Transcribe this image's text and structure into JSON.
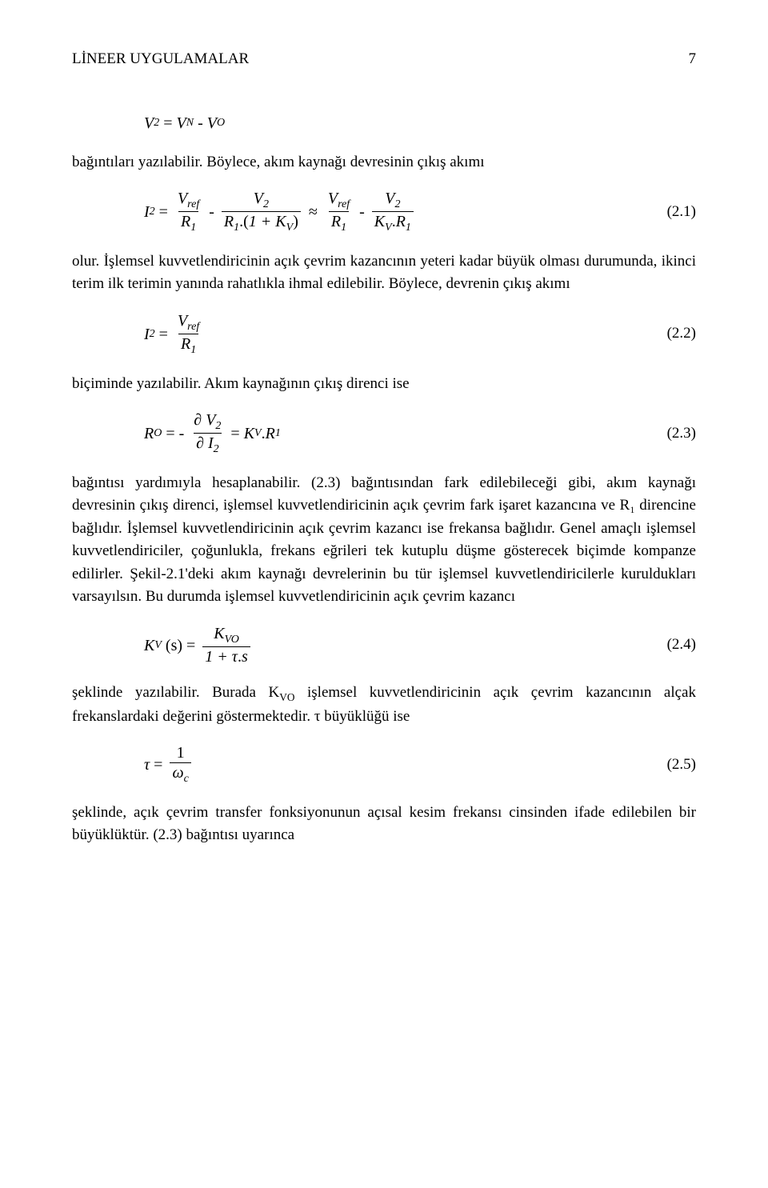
{
  "header": {
    "title": "LİNEER UYGULAMALAR",
    "page": "7"
  },
  "eq_intro": {
    "lhs": "V",
    "sub1": "2",
    "eq": "=",
    "t1": "V",
    "t1sub": "N",
    "minus": "-",
    "t2": "V",
    "t2sub": "O"
  },
  "p1": "bağıntıları yazılabilir. Böylece, akım kaynağı devresinin çıkış akımı",
  "eq1": {
    "I": "I",
    "Isub": "2",
    "eq": "=",
    "f1n": "V",
    "f1nsub": "ref",
    "f1d": "R",
    "f1dsub": "1",
    "minus1": "-",
    "f2n": "V",
    "f2nsub": "2",
    "f2dA": "R",
    "f2dAsub": "1",
    "f2dDot": ".(",
    "f2dB": "1 + K",
    "f2dBsub": "V",
    "f2dC": ")",
    "approx": "≈",
    "f3n": "V",
    "f3nsub": "ref",
    "f3d": "R",
    "f3dsub": "1",
    "minus2": "-",
    "f4n": "V",
    "f4nsub": "2",
    "f4dA": "K",
    "f4dAsub": "V",
    "f4dDot": ".",
    "f4dB": "R",
    "f4dBsub": "1",
    "num": "(2.1)"
  },
  "p2": "olur. İşlemsel kuvvetlendiricinin açık çevrim kazancının yeteri kadar büyük olması durumunda, ikinci terim ilk terimin yanında rahatlıkla ihmal edilebilir. Böylece, devrenin çıkış akımı",
  "eq2": {
    "I": "I",
    "Isub": "2",
    "eq": "=",
    "fn": "V",
    "fnsub": "ref",
    "fd": "R",
    "fdsub": "1",
    "num": "(2.2)"
  },
  "p3": "biçiminde yazılabilir. Akım kaynağının çıkış direnci ise",
  "eq3": {
    "R": "R",
    "Rsub": "O",
    "eq": "= -",
    "part1": "∂",
    "fnV": "V",
    "fnVsub": "2",
    "part2": "∂",
    "fdI": "I",
    "fdIsub": "2",
    "eq2": "=",
    "K": "K",
    "Ksub": "V",
    "dot": ".",
    "R1": "R",
    "R1sub": "1",
    "num": "(2.3)"
  },
  "p4": "bağıntısı yardımıyla hesaplanabilir. (2.3) bağıntısından fark edilebileceği gibi, akım kaynağı devresinin çıkış direnci, işlemsel kuvvetlendiricinin açık çevrim fark işaret kazancına ve R₁ direncine bağlıdır. İşlemsel kuvvetlendiricinin açık çevrim kazancı ise frekansa bağlıdır. Genel amaçlı işlemsel kuvvetlendiriciler, çoğunlukla, frekans eğrileri tek kutuplu düşme gösterecek biçimde kompanze edilirler. Şekil-2.1'deki akım kaynağı devrelerinin bu tür işlemsel kuvvetlendiricilerle kuruldukları varsayılsın. Bu durumda işlemsel kuvvetlendiricinin açık çevrim kazancı",
  "eq4": {
    "K": "K",
    "Ksub": "V",
    "arg": "(s) =",
    "fn": "K",
    "fnsub": "VO",
    "fd": "1 +",
    "tau": "τ",
    "dot": ".",
    "s": "s",
    "num": "(2.4)"
  },
  "p5": "şeklinde yazılabilir. Burada K",
  "p5sub": "VO",
  "p5b": " işlemsel kuvvetlendiricinin açık çevrim kazancının alçak frekanslardaki değerini göstermektedir. τ büyüklüğü  ise",
  "eq5": {
    "tau": "τ",
    "eq": "=",
    "fn": "1",
    "fd": "ω",
    "fdsub": "c",
    "num": "(2.5)"
  },
  "p6": "şeklinde, açık çevrim transfer fonksiyonunun açısal kesim frekansı cinsinden ifade edilebilen bir büyüklüktür. (2.3) bağıntısı uyarınca"
}
